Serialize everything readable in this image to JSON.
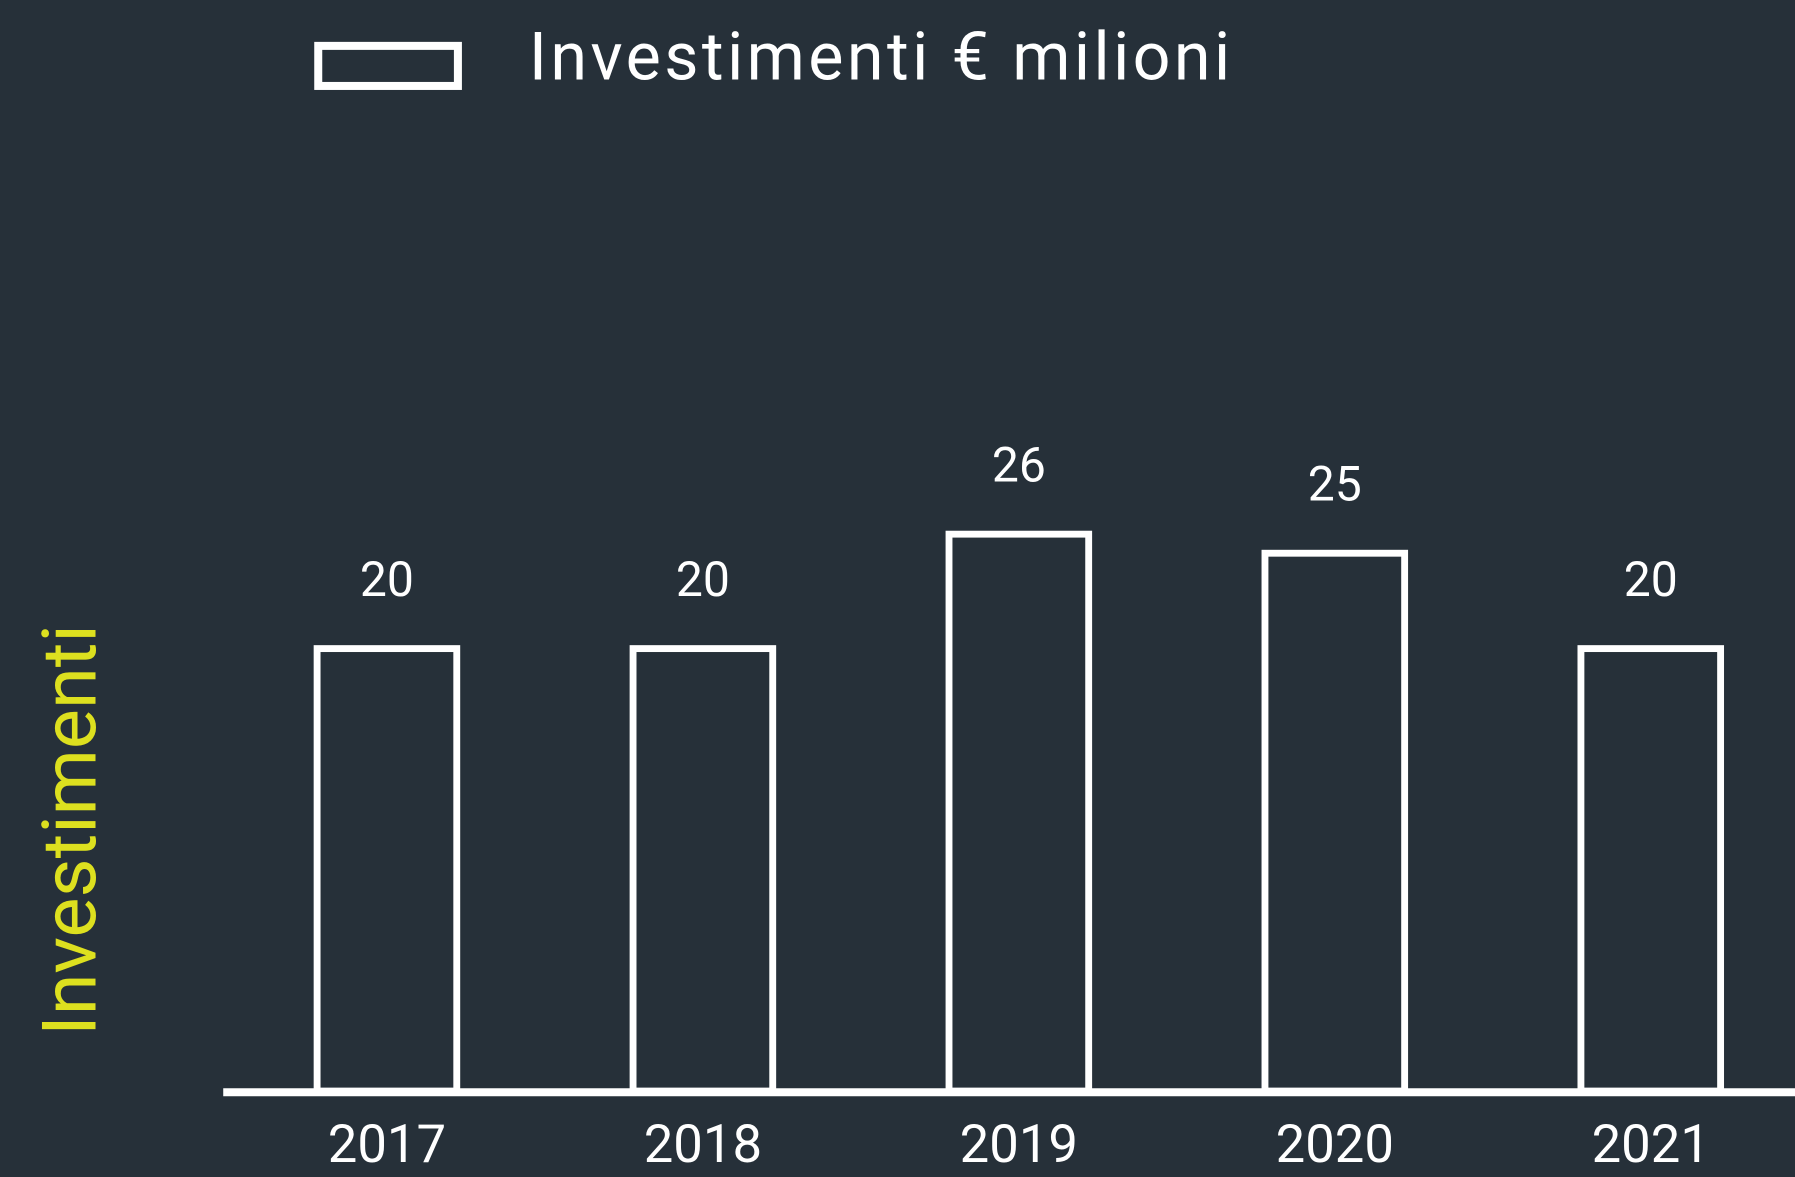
{
  "chart_data": {
    "type": "bar",
    "legend": "Investimenti € milioni",
    "ylabel": "Investimenti",
    "categories": [
      "2017",
      "2018",
      "2019",
      "2020",
      "2021"
    ],
    "values": [
      20,
      20,
      26,
      25,
      20
    ],
    "color": "#ffffff",
    "ylim": [
      -3.2,
      45
    ]
  }
}
